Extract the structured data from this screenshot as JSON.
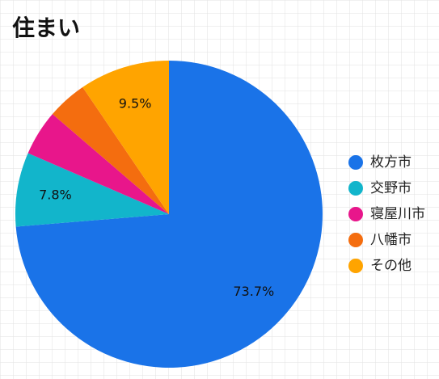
{
  "chart_data": {
    "type": "pie",
    "title": "住まい",
    "categories": [
      "枚方市",
      "交野市",
      "寝屋川市",
      "八幡市",
      "その他"
    ],
    "values": [
      73.7,
      7.8,
      4.8,
      4.2,
      9.5
    ],
    "value_labels": [
      "73.7%",
      "7.8%",
      null,
      null,
      "9.5%"
    ],
    "colors": [
      "#1a73e8",
      "#12b5cb",
      "#e8168b",
      "#f46d0f",
      "#ffa400"
    ],
    "legend": "right"
  }
}
